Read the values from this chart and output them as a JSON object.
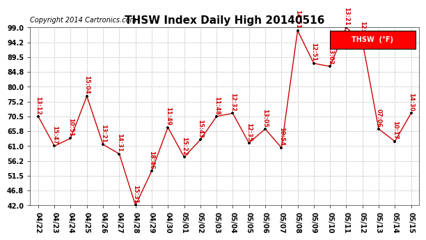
{
  "title": "THSW Index Daily High 20140516",
  "copyright": "Copyright 2014 Cartronics.com",
  "legend_label": "THSW  (°F)",
  "dates": [
    "04/22",
    "04/23",
    "04/24",
    "04/25",
    "04/26",
    "04/27",
    "04/28",
    "04/29",
    "04/30",
    "05/01",
    "05/02",
    "05/03",
    "05/04",
    "05/05",
    "05/06",
    "05/07",
    "05/08",
    "05/09",
    "05/10",
    "05/11",
    "05/12",
    "05/13",
    "05/14",
    "05/15"
  ],
  "values": [
    70.5,
    61.0,
    63.5,
    77.0,
    61.5,
    58.5,
    42.0,
    53.0,
    67.0,
    57.5,
    63.0,
    70.5,
    71.5,
    62.0,
    66.5,
    60.5,
    98.0,
    87.5,
    86.5,
    99.0,
    94.5,
    66.5,
    62.5,
    71.5
  ],
  "times": [
    "13:12",
    "15:47",
    "10:51",
    "15:04",
    "13:21",
    "14:31",
    "15:31",
    "18:46",
    "11:49",
    "15:22",
    "15:43",
    "11:48",
    "12:32",
    "12:35",
    "13:05",
    "10:54",
    "14:51",
    "12:51",
    "13:02",
    "13:21",
    "12:14",
    "07:06",
    "10:17",
    "14:30"
  ],
  "ylim": [
    42.0,
    99.0
  ],
  "yticks": [
    42.0,
    46.8,
    51.5,
    56.2,
    61.0,
    65.8,
    70.5,
    75.2,
    80.0,
    84.8,
    89.5,
    94.2,
    99.0
  ],
  "line_color": "#cc0000",
  "marker_color": "#000000",
  "label_color": "#cc0000",
  "background_color": "#ffffff",
  "grid_color": "#bbbbbb",
  "title_fontsize": 11,
  "label_fontsize": 6,
  "tick_fontsize": 7,
  "copyright_fontsize": 7
}
